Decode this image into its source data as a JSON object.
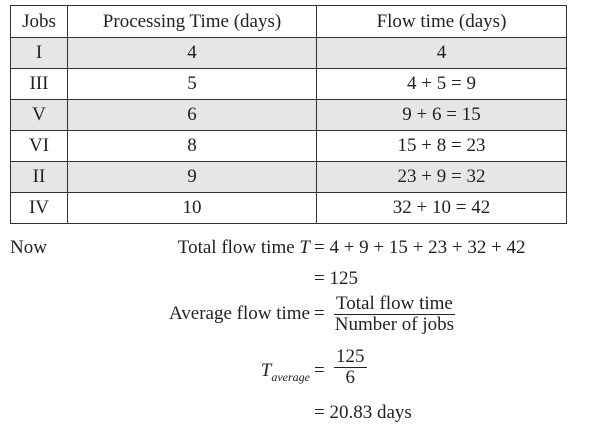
{
  "table": {
    "headers": [
      "Jobs",
      "Processing Time (days)",
      "Flow time (days)"
    ],
    "rows": [
      [
        "I",
        "4",
        "4"
      ],
      [
        "III",
        "5",
        "4 + 5 = 9"
      ],
      [
        "V",
        "6",
        "9 + 6 = 15"
      ],
      [
        "VI",
        "8",
        "15 + 8 = 23"
      ],
      [
        "II",
        "9",
        "23 + 9 = 32"
      ],
      [
        "IV",
        "10",
        "32 + 10 = 42"
      ]
    ]
  },
  "work": {
    "intro": "Now",
    "lines": [
      {
        "label": "Total flow time",
        "symbol": "T",
        "rhs": "= 4 + 9 + 15 + 23 + 32 + 42"
      },
      {
        "rhs": "= 125"
      },
      {
        "label": "Average flow time",
        "eq": "=",
        "numerator": "Total flow time",
        "denominator": "Number of jobs"
      },
      {
        "symbol": "T",
        "subscript": "average",
        "eq": "=",
        "numerator": "125",
        "denominator": "6"
      },
      {
        "rhs": "= 20.83 days"
      }
    ]
  }
}
